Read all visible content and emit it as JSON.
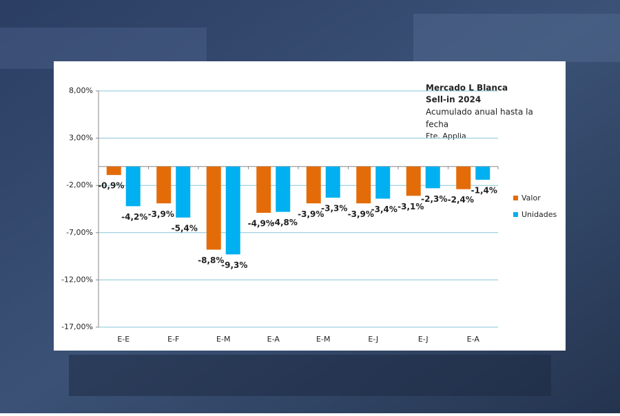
{
  "chart_data": {
    "type": "bar",
    "title": "Mercado L Blanca",
    "subtitle": "Sell-in 2024",
    "annotations": [
      "Acumulado anual hasta la",
      "fecha",
      "Fte. Applia"
    ],
    "categories": [
      "E-E",
      "E-F",
      "E-M",
      "E-A",
      "E-M",
      "E-J",
      "E-J",
      "E-A"
    ],
    "series": [
      {
        "name": "Valor",
        "color": "#e36c09",
        "label_color": "#e36c09",
        "values": [
          -0.9,
          -3.9,
          -8.8,
          -4.9,
          -3.9,
          -3.9,
          -3.1,
          -2.4
        ],
        "value_labels": [
          "-0,9%",
          "-3,9%",
          "-8,8%",
          "-4,9%",
          "-3,9%",
          "-3,9%",
          "-3,1%",
          "-2,4%"
        ]
      },
      {
        "name": "Unidades",
        "color": "#00b0f0",
        "label_color": "#1f77b8",
        "values": [
          -4.2,
          -5.4,
          -9.3,
          -4.8,
          -3.3,
          -3.4,
          -2.3,
          -1.4
        ],
        "value_labels": [
          "-4,2%",
          "-5,4%",
          "-9,3%",
          "-4,8%",
          "-3,3%",
          "-3,4%",
          "-2,3%",
          "-1,4%"
        ]
      }
    ],
    "ylim": [
      -17,
      8
    ],
    "yticks": [
      {
        "value": 8,
        "label": "8,00%"
      },
      {
        "value": 3,
        "label": "3,00%"
      },
      {
        "value": -2,
        "label": "-2,00%"
      },
      {
        "value": -7,
        "label": "-7,00%"
      },
      {
        "value": -12,
        "label": "-12,00%"
      },
      {
        "value": -17,
        "label": "-17,00%"
      }
    ],
    "grid": true,
    "legend": "right"
  }
}
